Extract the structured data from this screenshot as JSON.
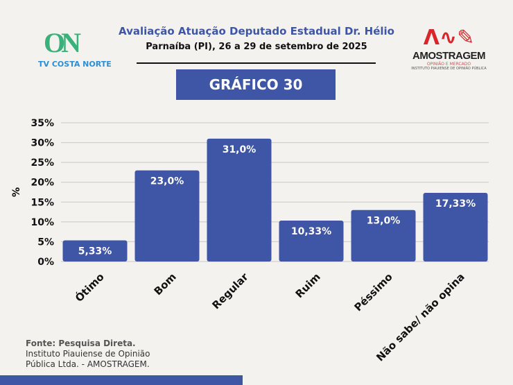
{
  "header": {
    "title": "Avaliação Atuação Deputado Estadual Dr. Hélio",
    "subtitle": "Parnaíba (PI), 26 a 29 de setembro de 2025",
    "chart_label": "GRÁFICO 30"
  },
  "logos": {
    "left": "TV COSTA NORTE",
    "right": "AMOSTRAGEM",
    "right_tagline": "OPINIÃO E MERCADO",
    "right_sub": "INSTITUTO PIAUIENSE DE OPINIÃO PÚBLICA"
  },
  "footer": {
    "source_bold": "Fonte: Pesquisa Direta.",
    "source_line1": "Instituto Piauiense de Opinião",
    "source_line2": "Pública Ltda. - AMOSTRAGEM."
  },
  "colors": {
    "bar": "#3f55a5",
    "accent": "#3f55a5"
  },
  "chart_data": {
    "type": "bar",
    "categories": [
      "Ótimo",
      "Bom",
      "Regular",
      "Ruim",
      "Péssimo",
      "Não sabe/ não opina"
    ],
    "values": [
      5.33,
      23.0,
      31.0,
      10.33,
      13.0,
      17.33
    ],
    "data_labels": [
      "5,33%",
      "23,0%",
      "31,0%",
      "10,33%",
      "13,0%",
      "17,33%"
    ],
    "ylabel": "%",
    "ylim": [
      0,
      35
    ],
    "yticks": [
      "0%",
      "5%",
      "10%",
      "15%",
      "20%",
      "25%",
      "30%",
      "35%"
    ],
    "grid": true
  }
}
